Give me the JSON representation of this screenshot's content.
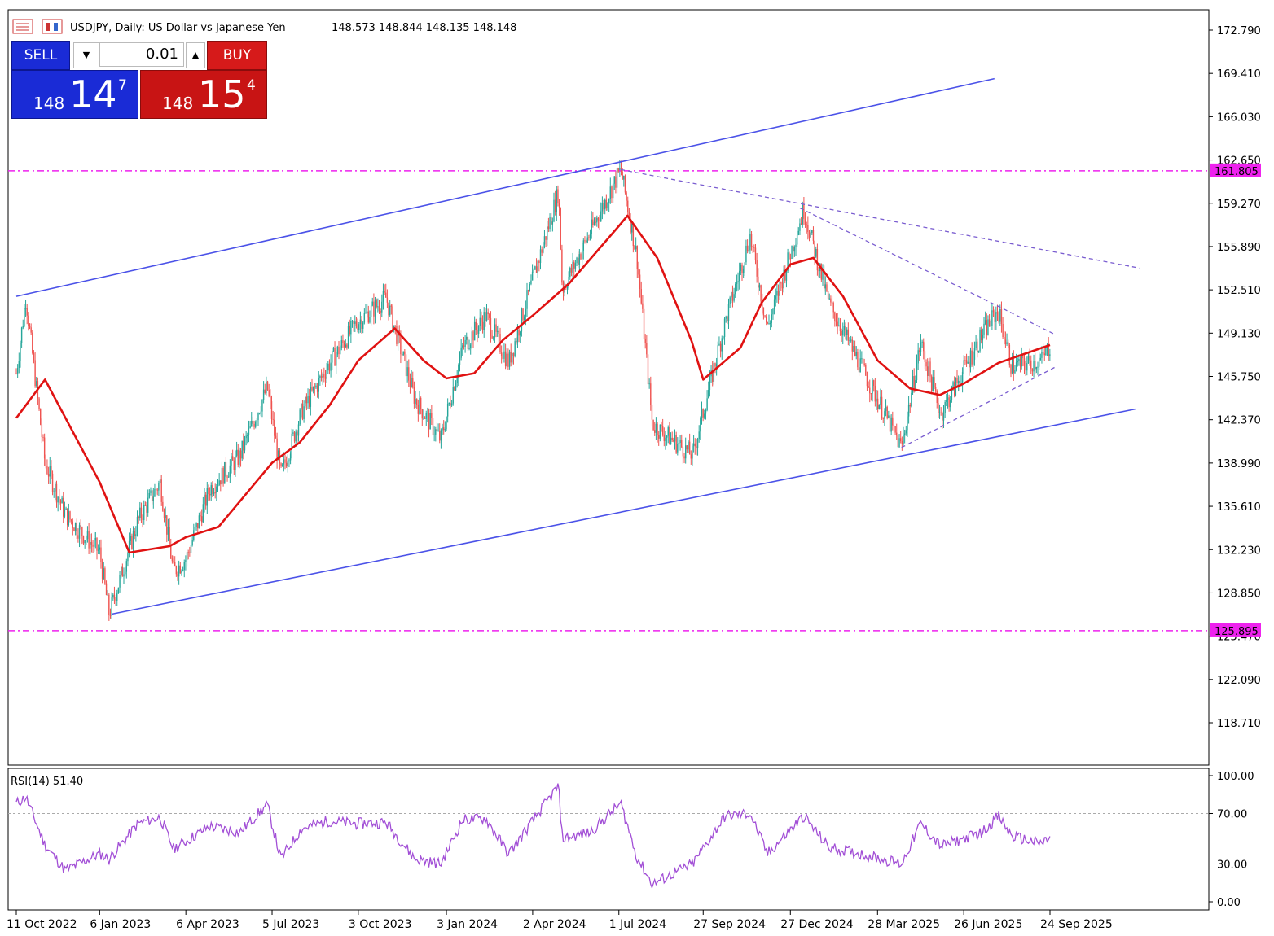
{
  "header": {
    "symbol": "USDJPY, Daily:  US Dollar vs Japanese Yen",
    "ohlc": "148.573 148.844 148.135 148.148"
  },
  "trade_panel": {
    "sell_label": "SELL",
    "buy_label": "BUY",
    "lot": "0.01",
    "sell_price": {
      "prefix": "148",
      "big": "14",
      "sup": "7"
    },
    "buy_price": {
      "prefix": "148",
      "big": "15",
      "sup": "4"
    }
  },
  "rsi": {
    "label": "RSI(14) 51.40",
    "levels": [
      "100.00",
      "70.00",
      "30.00",
      "0.00"
    ],
    "level_values": [
      100,
      70,
      30,
      0
    ],
    "value": 51.4,
    "color": "#a24fd6"
  },
  "colors": {
    "candle_up": "#26a69a",
    "candle_down": "#ef5350",
    "ma": "#e01212",
    "channel": "#4b52e8",
    "fib_level": "#ee22ee",
    "triangle": "#7a5dd0"
  },
  "chart_data": {
    "type": "candlestick",
    "symbol": "USDJPY",
    "timeframe": "Daily",
    "y_ticks": [
      "172.790",
      "169.410",
      "166.030",
      "162.650",
      "159.270",
      "155.890",
      "152.510",
      "149.130",
      "145.750",
      "142.370",
      "138.990",
      "135.610",
      "132.230",
      "128.850",
      "125.470",
      "122.090",
      "118.710"
    ],
    "ylim": [
      114.9,
      174.2
    ],
    "x_ticks": [
      "11 Oct 2022",
      "6 Jan 2023",
      "6 Apr 2023",
      "5 Jul 2023",
      "3 Oct 2023",
      "3 Jan 2024",
      "2 Apr 2024",
      "1 Jul 2024",
      "27 Sep 2024",
      "27 Dec 2024",
      "28 Mar 2025",
      "26 Jun 2025",
      "24 Sep 2025"
    ],
    "horizontal_levels": [
      {
        "label": "161.805",
        "value": 161.805
      },
      {
        "label": "125.895",
        "value": 125.895
      }
    ],
    "close_path": [
      [
        "11 Oct 2022",
        146.0
      ],
      [
        "21 Oct 2022",
        151.9
      ],
      [
        "10 Nov 2022",
        139.0
      ],
      [
        "1 Dec 2022",
        135.0
      ],
      [
        "6 Jan 2023",
        132.0
      ],
      [
        "16 Jan 2023",
        127.2
      ],
      [
        "15 Feb 2023",
        134.5
      ],
      [
        "10 Mar 2023",
        137.5
      ],
      [
        "24 Mar 2023",
        130.5
      ],
      [
        "6 Apr 2023",
        131.5
      ],
      [
        "1 May 2023",
        137.0
      ],
      [
        "1 Jun 2023",
        139.5
      ],
      [
        "30 Jun 2023",
        144.9
      ],
      [
        "14 Jul 2023",
        138.0
      ],
      [
        "5 Aug 2023",
        143.0
      ],
      [
        "1 Sep 2023",
        146.5
      ],
      [
        "1 Oct 2023",
        149.9
      ],
      [
        "1 Nov 2023",
        151.9
      ],
      [
        "1 Dec 2023",
        144.0
      ],
      [
        "28 Dec 2023",
        140.8
      ],
      [
        "20 Jan 2024",
        148.0
      ],
      [
        "13 Feb 2024",
        150.5
      ],
      [
        "8 Mar 2024",
        146.8
      ],
      [
        "29 Apr 2024",
        160.2
      ],
      [
        "3 May 2024",
        152.5
      ],
      [
        "1 Jun 2024",
        157.0
      ],
      [
        "3 Jul 2024",
        161.9
      ],
      [
        "20 Jul 2024",
        155.0
      ],
      [
        "5 Aug 2024",
        142.0
      ],
      [
        "16 Sep 2024",
        139.6
      ],
      [
        "20 Oct 2024",
        150.0
      ],
      [
        "15 Nov 2024",
        156.7
      ],
      [
        "3 Dec 2024",
        149.5
      ],
      [
        "10 Jan 2025",
        158.8
      ],
      [
        "5 Feb 2025",
        151.5
      ],
      [
        "11 Mar 2025",
        146.5
      ],
      [
        "22 Apr 2025",
        140.2
      ],
      [
        "12 May 2025",
        148.4
      ],
      [
        "2 Jun 2025",
        142.8
      ],
      [
        "15 Jul 2025",
        149.0
      ],
      [
        "1 Aug 2025",
        150.9
      ],
      [
        "15 Aug 2025",
        146.5
      ],
      [
        "15 Sep 2025",
        147.0
      ],
      [
        "24 Sep 2025",
        148.148
      ]
    ],
    "moving_average_path": [
      [
        "11 Oct 2022",
        142.5
      ],
      [
        "10 Nov 2022",
        145.5
      ],
      [
        "6 Jan 2023",
        137.5
      ],
      [
        "6 Feb 2023",
        132.0
      ],
      [
        "20 Mar 2023",
        132.5
      ],
      [
        "6 Apr 2023",
        133.2
      ],
      [
        "10 May 2023",
        134.0
      ],
      [
        "5 Jul 2023",
        139.0
      ],
      [
        "3 Aug 2023",
        140.6
      ],
      [
        "3 Sep 2023",
        143.5
      ],
      [
        "3 Oct 2023",
        147.0
      ],
      [
        "10 Nov 2023",
        149.5
      ],
      [
        "10 Dec 2023",
        147.0
      ],
      [
        "3 Jan 2024",
        145.6
      ],
      [
        "1 Feb 2024",
        146.0
      ],
      [
        "2 Mar 2024",
        148.6
      ],
      [
        "2 Apr 2024",
        150.5
      ],
      [
        "10 May 2024",
        153.0
      ],
      [
        "1 Jul 2024",
        157.5
      ],
      [
        "10 Jul 2024",
        158.3
      ],
      [
        "10 Aug 2024",
        155.0
      ],
      [
        "15 Sep 2024",
        148.5
      ],
      [
        "27 Sep 2024",
        145.5
      ],
      [
        "5 Nov 2024",
        148.0
      ],
      [
        "27 Nov 2024",
        151.5
      ],
      [
        "27 Dec 2024",
        154.5
      ],
      [
        "20 Jan 2025",
        155.0
      ],
      [
        "20 Feb 2025",
        152.0
      ],
      [
        "28 Mar 2025",
        147.0
      ],
      [
        "1 May 2025",
        144.8
      ],
      [
        "1 Jun 2025",
        144.3
      ],
      [
        "26 Jun 2025",
        145.2
      ],
      [
        "1 Aug 2025",
        146.8
      ],
      [
        "24 Sep 2025",
        148.2
      ]
    ],
    "channel_lines": [
      {
        "name": "upper",
        "points": [
          [
            "11 Oct 2022",
            152.0
          ],
          [
            "28 Jul 2025",
            169.0
          ]
        ]
      },
      {
        "name": "lower",
        "points": [
          [
            "19 Jan 2023",
            127.2
          ],
          [
            "22 Dec 2025",
            143.2
          ]
        ]
      }
    ],
    "triangle_lines": [
      {
        "name": "upper_long",
        "points": [
          [
            "3 Jul 2024",
            161.9
          ],
          [
            "27 Dec 2025",
            154.2
          ]
        ]
      },
      {
        "name": "upper_short",
        "points": [
          [
            "6 Jan 2025",
            158.9
          ],
          [
            "30 Sep 2025",
            149.0
          ]
        ]
      },
      {
        "name": "lower",
        "points": [
          [
            "22 Apr 2025",
            140.2
          ],
          [
            "30 Sep 2025",
            146.5
          ]
        ]
      }
    ],
    "rsi_path": [
      [
        "11 Oct 2022",
        78
      ],
      [
        "21 Oct 2022",
        83
      ],
      [
        "10 Nov 2022",
        45
      ],
      [
        "1 Dec 2022",
        25
      ],
      [
        "6 Jan 2023",
        38
      ],
      [
        "16 Jan 2023",
        34
      ],
      [
        "15 Feb 2023",
        62
      ],
      [
        "10 Mar 2023",
        67
      ],
      [
        "24 Mar 2023",
        42
      ],
      [
        "6 Apr 2023",
        48
      ],
      [
        "1 May 2023",
        60
      ],
      [
        "1 Jun 2023",
        55
      ],
      [
        "30 Jun 2023",
        77
      ],
      [
        "14 Jul 2023",
        34
      ],
      [
        "5 Aug 2023",
        58
      ],
      [
        "1 Sep 2023",
        64
      ],
      [
        "1 Oct 2023",
        62
      ],
      [
        "1 Nov 2023",
        63
      ],
      [
        "1 Dec 2023",
        34
      ],
      [
        "28 Dec 2023",
        30
      ],
      [
        "20 Jan 2024",
        65
      ],
      [
        "13 Feb 2024",
        66
      ],
      [
        "8 Mar 2024",
        38
      ],
      [
        "29 Apr 2024",
        92
      ],
      [
        "3 May 2024",
        50
      ],
      [
        "1 Jun 2024",
        55
      ],
      [
        "3 Jul 2024",
        78
      ],
      [
        "20 Jul 2024",
        35
      ],
      [
        "5 Aug 2024",
        14
      ],
      [
        "16 Sep 2024",
        30
      ],
      [
        "20 Oct 2024",
        68
      ],
      [
        "15 Nov 2024",
        70
      ],
      [
        "3 Dec 2024",
        38
      ],
      [
        "10 Jan 2025",
        68
      ],
      [
        "5 Feb 2025",
        43
      ],
      [
        "11 Mar 2025",
        38
      ],
      [
        "22 Apr 2025",
        30
      ],
      [
        "12 May 2025",
        62
      ],
      [
        "2 Jun 2025",
        44
      ],
      [
        "15 Jul 2025",
        55
      ],
      [
        "1 Aug 2025",
        68
      ],
      [
        "15 Aug 2025",
        52
      ],
      [
        "15 Sep 2025",
        46
      ],
      [
        "24 Sep 2025",
        51.4
      ]
    ]
  }
}
